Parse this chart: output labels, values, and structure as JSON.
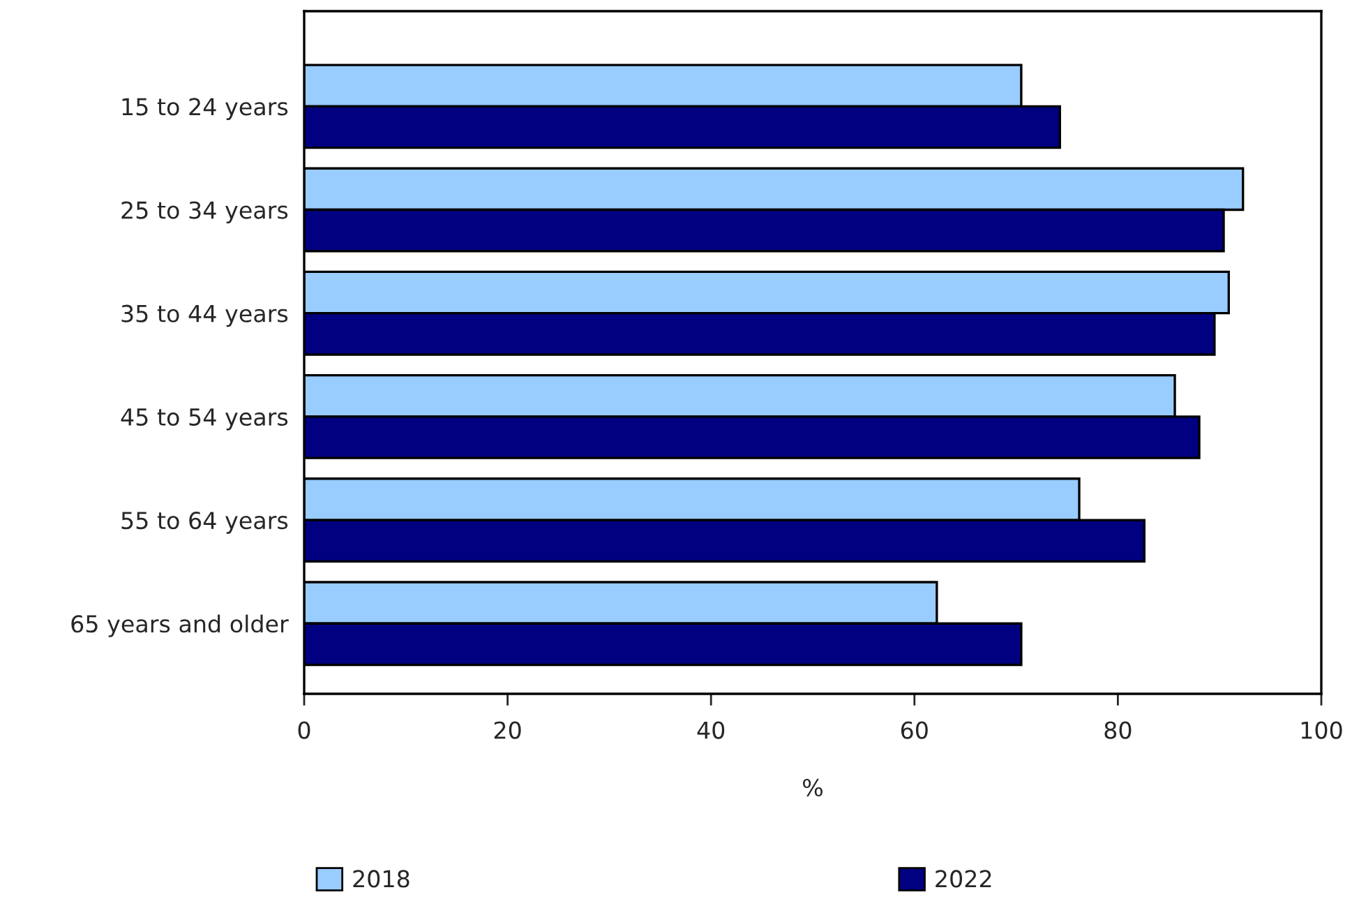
{
  "chart_data": {
    "type": "bar",
    "orientation": "horizontal",
    "xlabel": "%",
    "categories": [
      "15 to 24 years",
      "25 to 34 years",
      "35 to 44 years",
      "45 to 54 years",
      "55 to 64 years",
      "65 years and older"
    ],
    "series": [
      {
        "name": "2018",
        "color": "#99ccff",
        "values": [
          70.5,
          92.3,
          90.9,
          85.6,
          76.2,
          62.2
        ]
      },
      {
        "name": "2022",
        "color": "#000080",
        "values": [
          74.3,
          90.4,
          89.5,
          88.0,
          82.6,
          70.5
        ]
      }
    ],
    "xlim": [
      0,
      100
    ],
    "xticks": [
      0,
      20,
      40,
      60,
      80,
      100
    ],
    "grid": false,
    "legend": "bottom"
  }
}
